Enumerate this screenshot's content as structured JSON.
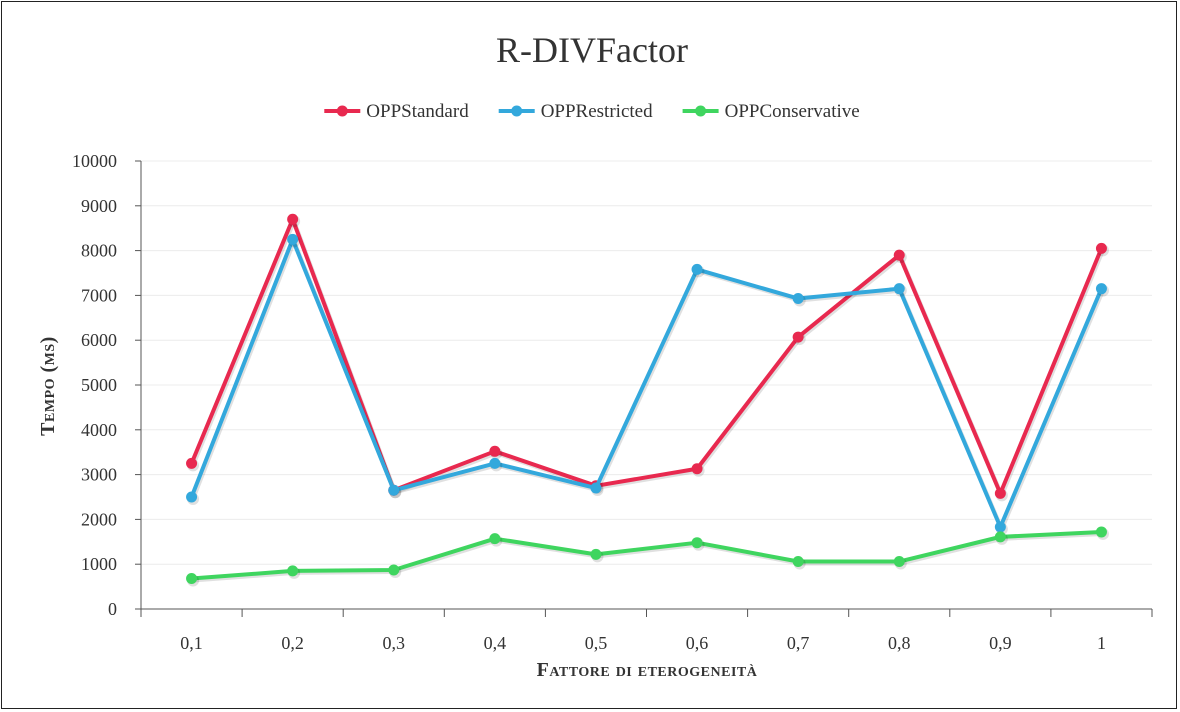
{
  "chart_data": {
    "type": "line",
    "title": "R-DIVFactor",
    "xlabel": "Fattore di eterogeneità",
    "ylabel": "Tempo (ms)",
    "categories": [
      "0,1",
      "0,2",
      "0,3",
      "0,4",
      "0,5",
      "0,6",
      "0,7",
      "0,8",
      "0,9",
      "1"
    ],
    "ylim": [
      0,
      10000
    ],
    "yticks": [
      0,
      1000,
      2000,
      3000,
      4000,
      5000,
      6000,
      7000,
      8000,
      9000,
      10000
    ],
    "grid": true,
    "legend_position": "top",
    "series": [
      {
        "name": "OPPStandard",
        "color": "#e8294f",
        "values": [
          3250,
          8700,
          2650,
          3520,
          2750,
          3130,
          6070,
          7900,
          2580,
          8050
        ]
      },
      {
        "name": "OPPRestricted",
        "color": "#33a8dc",
        "values": [
          2500,
          8250,
          2650,
          3250,
          2700,
          7580,
          6930,
          7150,
          1830,
          7150
        ]
      },
      {
        "name": "OPPConservative",
        "color": "#3fd55f",
        "values": [
          680,
          850,
          870,
          1570,
          1220,
          1480,
          1060,
          1060,
          1610,
          1720
        ]
      }
    ]
  }
}
